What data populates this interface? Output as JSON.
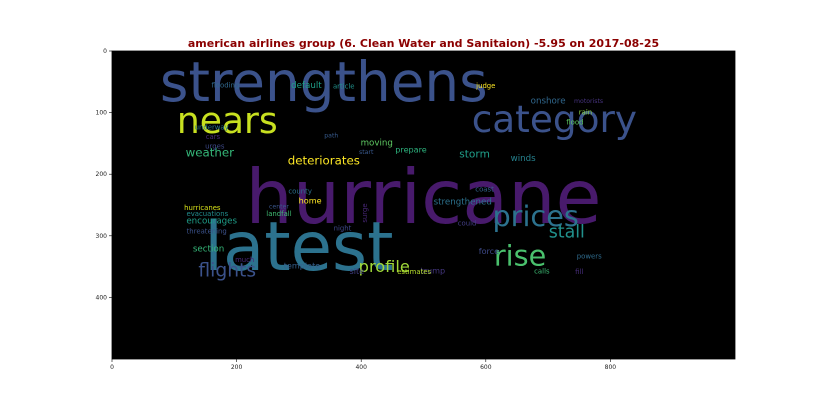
{
  "chart_data": {
    "type": "wordcloud",
    "title": "american airlines group (6. Clean Water and Sanitaion) -5.95 on 2017-08-25",
    "title_color": "#8b0000",
    "background": "#000000",
    "xlim": [
      0,
      1000
    ],
    "ylim": [
      500,
      0
    ],
    "x_ticks": [
      0,
      200,
      400,
      600,
      800
    ],
    "y_ticks": [
      0,
      100,
      200,
      300,
      400
    ],
    "words": [
      {
        "text": "hurricane",
        "x": 500,
        "y": 238,
        "size": 120,
        "color": "#481a6c"
      },
      {
        "text": "strengthens",
        "x": 340,
        "y": 50,
        "size": 88,
        "color": "#3b528b"
      },
      {
        "text": "latest",
        "x": 300,
        "y": 318,
        "size": 108,
        "color": "#2c728e"
      },
      {
        "text": "category",
        "x": 710,
        "y": 110,
        "size": 60,
        "color": "#3b528b"
      },
      {
        "text": "nears",
        "x": 185,
        "y": 114,
        "size": 58,
        "color": "#c8e020"
      },
      {
        "text": "prices",
        "x": 680,
        "y": 268,
        "size": 46,
        "color": "#2c728e"
      },
      {
        "text": "rise",
        "x": 655,
        "y": 332,
        "size": 46,
        "color": "#4ac16d"
      },
      {
        "text": "flights",
        "x": 185,
        "y": 357,
        "size": 30,
        "color": "#3b528b"
      },
      {
        "text": "stall",
        "x": 730,
        "y": 295,
        "size": 28,
        "color": "#21918c"
      },
      {
        "text": "profile",
        "x": 437,
        "y": 350,
        "size": 26,
        "color": "#a0da39"
      },
      {
        "text": "deteriorates",
        "x": 340,
        "y": 178,
        "size": 19,
        "color": "#fde725"
      },
      {
        "text": "weather",
        "x": 157,
        "y": 165,
        "size": 19,
        "color": "#35b779"
      },
      {
        "text": "storm",
        "x": 582,
        "y": 168,
        "size": 17,
        "color": "#1f9e89"
      },
      {
        "text": "strengthened",
        "x": 563,
        "y": 246,
        "size": 14,
        "color": "#2c728e"
      },
      {
        "text": "default",
        "x": 312,
        "y": 57,
        "size": 14,
        "color": "#1f9e89"
      },
      {
        "text": "encourages",
        "x": 160,
        "y": 277,
        "size": 14,
        "color": "#1f9e89"
      },
      {
        "text": "section",
        "x": 155,
        "y": 322,
        "size": 14,
        "color": "#35b779"
      },
      {
        "text": "moving",
        "x": 425,
        "y": 150,
        "size": 14,
        "color": "#5ec962"
      },
      {
        "text": "onshore",
        "x": 700,
        "y": 82,
        "size": 14,
        "color": "#31688e"
      },
      {
        "text": "winds",
        "x": 660,
        "y": 175,
        "size": 14,
        "color": "#26828e"
      },
      {
        "text": "prepare",
        "x": 480,
        "y": 160,
        "size": 13,
        "color": "#2db27d"
      },
      {
        "text": "home",
        "x": 318,
        "y": 243,
        "size": 13,
        "color": "#fde725"
      },
      {
        "text": "template",
        "x": 305,
        "y": 348,
        "size": 13,
        "color": "#35608d"
      },
      {
        "text": "site",
        "x": 393,
        "y": 357,
        "size": 13,
        "color": "#433e85"
      },
      {
        "text": "trump",
        "x": 515,
        "y": 356,
        "size": 13,
        "color": "#453781"
      },
      {
        "text": "force",
        "x": 605,
        "y": 325,
        "size": 13,
        "color": "#3e4a89"
      },
      {
        "text": "flooding",
        "x": 182,
        "y": 56,
        "size": 11,
        "color": "#31688e"
      },
      {
        "text": "article",
        "x": 372,
        "y": 58,
        "size": 11,
        "color": "#21918c"
      },
      {
        "text": "judge",
        "x": 600,
        "y": 57,
        "size": 11,
        "color": "#fde725"
      },
      {
        "text": "motorists",
        "x": 765,
        "y": 82,
        "size": 10,
        "color": "#46337e"
      },
      {
        "text": "rain",
        "x": 760,
        "y": 100,
        "size": 11,
        "color": "#8fd744"
      },
      {
        "text": "flood",
        "x": 743,
        "y": 116,
        "size": 11,
        "color": "#5ec962"
      },
      {
        "text": "underway",
        "x": 160,
        "y": 124,
        "size": 11,
        "color": "#2a788e"
      },
      {
        "text": "cars",
        "x": 162,
        "y": 140,
        "size": 11,
        "color": "#482878"
      },
      {
        "text": "urges",
        "x": 165,
        "y": 155,
        "size": 11,
        "color": "#3e4a89"
      },
      {
        "text": "path",
        "x": 352,
        "y": 138,
        "size": 10,
        "color": "#375a8c"
      },
      {
        "text": "start",
        "x": 408,
        "y": 165,
        "size": 10,
        "color": "#38588c"
      },
      {
        "text": "county",
        "x": 302,
        "y": 228,
        "size": 11,
        "color": "#2d718e"
      },
      {
        "text": "surge",
        "x": 406,
        "y": 263,
        "size": 11,
        "color": "#482677",
        "rotate": -90
      },
      {
        "text": "night",
        "x": 370,
        "y": 288,
        "size": 11,
        "color": "#3e4989"
      },
      {
        "text": "coast",
        "x": 598,
        "y": 225,
        "size": 11,
        "color": "#33638d"
      },
      {
        "text": "could",
        "x": 570,
        "y": 280,
        "size": 11,
        "color": "#433e85"
      },
      {
        "text": "hurricanes",
        "x": 145,
        "y": 255,
        "size": 11,
        "color": "#d8e219"
      },
      {
        "text": "evacuations",
        "x": 153,
        "y": 265,
        "size": 11,
        "color": "#228c8d"
      },
      {
        "text": "center",
        "x": 268,
        "y": 253,
        "size": 10,
        "color": "#39568c"
      },
      {
        "text": "landfall",
        "x": 268,
        "y": 265,
        "size": 11,
        "color": "#3fbc73"
      },
      {
        "text": "threatening",
        "x": 152,
        "y": 293,
        "size": 11,
        "color": "#3b528b"
      },
      {
        "text": "much",
        "x": 213,
        "y": 339,
        "size": 11,
        "color": "#482878"
      },
      {
        "text": "estimates",
        "x": 485,
        "y": 359,
        "size": 11,
        "color": "#b5de2b"
      },
      {
        "text": "powers",
        "x": 766,
        "y": 334,
        "size": 11,
        "color": "#2f6c8e"
      },
      {
        "text": "calls",
        "x": 690,
        "y": 358,
        "size": 11,
        "color": "#3dbc74"
      },
      {
        "text": "fill",
        "x": 750,
        "y": 359,
        "size": 11,
        "color": "#472d7b"
      }
    ]
  }
}
